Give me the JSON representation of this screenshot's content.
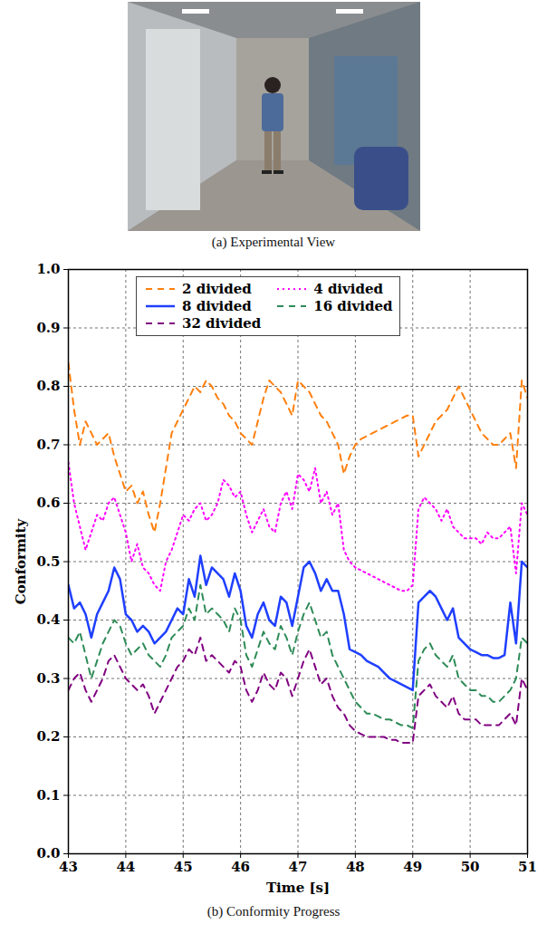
{
  "panel_a": {
    "caption": "(a) Experimental View"
  },
  "chart_data": {
    "type": "line",
    "caption": "(b) Conformity Progress",
    "x_label": "Time [s]",
    "y_label": "Conformity",
    "xlim": [
      43,
      51
    ],
    "ylim": [
      0,
      1
    ],
    "xticks": [
      43,
      44,
      45,
      46,
      47,
      48,
      49,
      50,
      51
    ],
    "yticks": [
      {
        "value": 0,
        "label": "0.0"
      },
      0.1,
      0.2,
      0.3,
      0.4,
      0.5,
      0.6,
      0.7,
      0.8,
      0.9,
      {
        "value": 1,
        "label": "1.0"
      }
    ],
    "grid": true,
    "legend": "top",
    "x": [
      43.0,
      43.1,
      43.2,
      43.3,
      43.4,
      43.5,
      43.6,
      43.7,
      43.8,
      43.9,
      44.0,
      44.1,
      44.2,
      44.3,
      44.4,
      44.5,
      44.6,
      44.7,
      44.8,
      44.9,
      45.0,
      45.1,
      45.2,
      45.3,
      45.4,
      45.5,
      45.6,
      45.7,
      45.8,
      45.9,
      46.0,
      46.1,
      46.2,
      46.3,
      46.4,
      46.5,
      46.6,
      46.7,
      46.8,
      46.9,
      47.0,
      47.1,
      47.2,
      47.3,
      47.4,
      47.5,
      47.6,
      47.7,
      47.8,
      47.9,
      48.0,
      48.1,
      48.2,
      48.3,
      48.4,
      48.5,
      48.6,
      48.7,
      48.8,
      48.9,
      49.0,
      49.1,
      49.2,
      49.3,
      49.4,
      49.5,
      49.6,
      49.7,
      49.8,
      49.9,
      50.0,
      50.1,
      50.2,
      50.3,
      50.4,
      50.5,
      50.6,
      50.7,
      50.8,
      50.9,
      51.0
    ],
    "series": [
      {
        "name": "2 divided",
        "color": "#ff7f0e",
        "line_style": "dashed",
        "values": [
          0.84,
          0.76,
          0.7,
          0.74,
          0.72,
          0.7,
          0.71,
          0.72,
          0.68,
          0.65,
          0.62,
          0.63,
          0.6,
          0.62,
          0.58,
          0.55,
          0.6,
          0.66,
          0.72,
          0.74,
          0.76,
          0.78,
          0.8,
          0.79,
          0.81,
          0.8,
          0.78,
          0.77,
          0.75,
          0.74,
          0.72,
          0.71,
          0.7,
          0.74,
          0.78,
          0.81,
          0.8,
          0.79,
          0.77,
          0.75,
          0.81,
          0.8,
          0.79,
          0.77,
          0.75,
          0.74,
          0.72,
          0.7,
          0.65,
          0.68,
          0.7,
          0.71,
          0.715,
          0.72,
          0.725,
          0.73,
          0.735,
          0.74,
          0.745,
          0.75,
          0.75,
          0.68,
          0.7,
          0.72,
          0.74,
          0.75,
          0.76,
          0.78,
          0.8,
          0.78,
          0.76,
          0.74,
          0.72,
          0.71,
          0.7,
          0.7,
          0.71,
          0.72,
          0.66,
          0.81,
          0.78
        ]
      },
      {
        "name": "4 divided",
        "color": "#ff00ff",
        "line_style": "dotted",
        "values": [
          0.67,
          0.6,
          0.56,
          0.52,
          0.55,
          0.58,
          0.57,
          0.6,
          0.61,
          0.58,
          0.55,
          0.5,
          0.53,
          0.49,
          0.48,
          0.46,
          0.45,
          0.5,
          0.52,
          0.55,
          0.58,
          0.57,
          0.59,
          0.6,
          0.57,
          0.58,
          0.6,
          0.64,
          0.63,
          0.61,
          0.62,
          0.58,
          0.55,
          0.57,
          0.59,
          0.56,
          0.55,
          0.6,
          0.62,
          0.59,
          0.65,
          0.64,
          0.62,
          0.66,
          0.6,
          0.62,
          0.58,
          0.6,
          0.52,
          0.5,
          0.49,
          0.485,
          0.48,
          0.475,
          0.47,
          0.465,
          0.46,
          0.455,
          0.45,
          0.45,
          0.46,
          0.59,
          0.61,
          0.6,
          0.59,
          0.57,
          0.59,
          0.56,
          0.55,
          0.54,
          0.54,
          0.54,
          0.53,
          0.55,
          0.54,
          0.54,
          0.55,
          0.56,
          0.48,
          0.6,
          0.58
        ]
      },
      {
        "name": "8 divided",
        "color": "#1f3fff",
        "line_style": "solid",
        "values": [
          0.46,
          0.42,
          0.43,
          0.41,
          0.37,
          0.41,
          0.43,
          0.45,
          0.49,
          0.47,
          0.41,
          0.4,
          0.38,
          0.39,
          0.38,
          0.36,
          0.37,
          0.38,
          0.4,
          0.42,
          0.41,
          0.47,
          0.44,
          0.51,
          0.46,
          0.49,
          0.48,
          0.47,
          0.44,
          0.48,
          0.45,
          0.39,
          0.37,
          0.41,
          0.43,
          0.4,
          0.39,
          0.44,
          0.43,
          0.39,
          0.44,
          0.49,
          0.5,
          0.48,
          0.45,
          0.47,
          0.45,
          0.45,
          0.41,
          0.35,
          0.345,
          0.34,
          0.33,
          0.325,
          0.32,
          0.31,
          0.3,
          0.295,
          0.29,
          0.285,
          0.28,
          0.43,
          0.44,
          0.45,
          0.44,
          0.42,
          0.4,
          0.42,
          0.37,
          0.36,
          0.35,
          0.345,
          0.34,
          0.34,
          0.335,
          0.335,
          0.34,
          0.43,
          0.36,
          0.5,
          0.49
        ]
      },
      {
        "name": "16 divided",
        "color": "#2e8b57",
        "line_style": "dashed",
        "values": [
          0.37,
          0.36,
          0.38,
          0.34,
          0.3,
          0.33,
          0.36,
          0.38,
          0.4,
          0.39,
          0.36,
          0.34,
          0.35,
          0.36,
          0.34,
          0.33,
          0.32,
          0.34,
          0.37,
          0.38,
          0.39,
          0.42,
          0.4,
          0.46,
          0.41,
          0.42,
          0.41,
          0.4,
          0.38,
          0.42,
          0.4,
          0.34,
          0.32,
          0.35,
          0.38,
          0.36,
          0.35,
          0.39,
          0.37,
          0.34,
          0.38,
          0.41,
          0.43,
          0.4,
          0.37,
          0.38,
          0.34,
          0.32,
          0.3,
          0.28,
          0.26,
          0.25,
          0.24,
          0.24,
          0.235,
          0.23,
          0.23,
          0.225,
          0.22,
          0.22,
          0.215,
          0.33,
          0.35,
          0.36,
          0.34,
          0.33,
          0.32,
          0.34,
          0.3,
          0.29,
          0.28,
          0.28,
          0.27,
          0.27,
          0.26,
          0.26,
          0.27,
          0.28,
          0.3,
          0.37,
          0.36
        ]
      },
      {
        "name": "32 divided",
        "color": "#800080",
        "line_style": "dashed",
        "values": [
          0.28,
          0.3,
          0.31,
          0.28,
          0.26,
          0.28,
          0.3,
          0.33,
          0.34,
          0.32,
          0.3,
          0.29,
          0.28,
          0.29,
          0.27,
          0.24,
          0.26,
          0.28,
          0.3,
          0.32,
          0.33,
          0.35,
          0.34,
          0.37,
          0.33,
          0.34,
          0.33,
          0.32,
          0.31,
          0.33,
          0.32,
          0.28,
          0.26,
          0.28,
          0.31,
          0.29,
          0.28,
          0.31,
          0.3,
          0.27,
          0.3,
          0.33,
          0.35,
          0.32,
          0.29,
          0.3,
          0.27,
          0.25,
          0.24,
          0.22,
          0.21,
          0.205,
          0.2,
          0.2,
          0.2,
          0.2,
          0.195,
          0.195,
          0.19,
          0.19,
          0.19,
          0.27,
          0.28,
          0.29,
          0.27,
          0.26,
          0.25,
          0.27,
          0.24,
          0.23,
          0.23,
          0.23,
          0.22,
          0.22,
          0.22,
          0.22,
          0.23,
          0.24,
          0.22,
          0.3,
          0.28
        ]
      }
    ]
  }
}
